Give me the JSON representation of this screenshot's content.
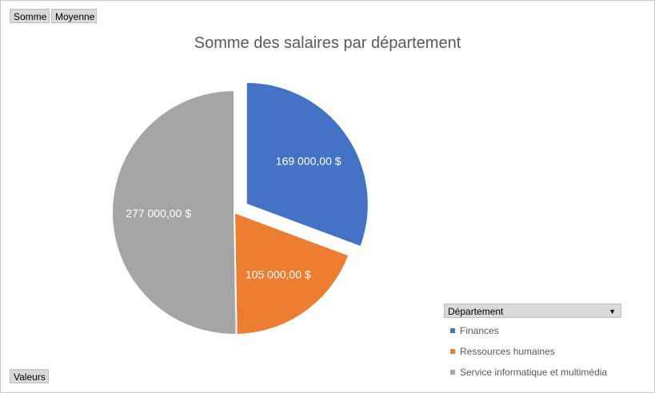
{
  "buttons": {
    "somme": "Somme",
    "moyenne": "Moyenne",
    "valeurs": "Valeurs"
  },
  "legend": {
    "header": "Département"
  },
  "chart_data": {
    "type": "pie",
    "title": "Somme des salaires par département",
    "categories": [
      "Finances",
      "Ressources humaines",
      "Service informatique et multimédia"
    ],
    "values": [
      169000,
      105000,
      277000
    ],
    "data_labels": [
      "169 000,00  $",
      "105 000,00  $",
      "277 000,00  $"
    ],
    "colors": [
      "#4472c4",
      "#ed7d31",
      "#a5a5a5"
    ],
    "exploded": [
      true,
      false,
      false
    ],
    "legend_position": "bottom-right"
  }
}
